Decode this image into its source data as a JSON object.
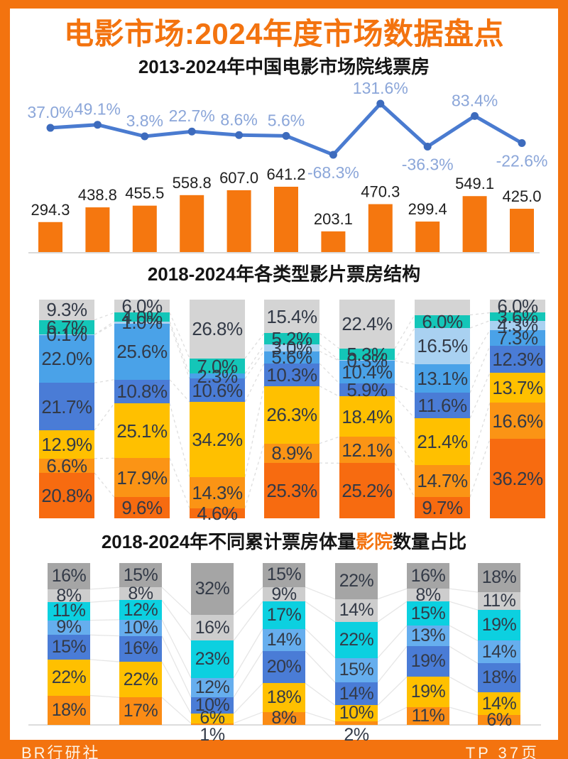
{
  "header": {
    "title": "电影市场:2024年度市场数据盘点",
    "title_color": "#f3730f"
  },
  "footer": {
    "left": "BR行研社",
    "right": "TP 37页"
  },
  "chart_data": [
    {
      "type": "bar",
      "title": "2013-2024年中国电影市场院线票房",
      "bar_values": [
        294.3,
        438.8,
        455.5,
        558.8,
        607.0,
        641.2,
        203.1,
        470.3,
        299.4,
        549.1,
        425.0
      ],
      "line_yoy_pct": [
        37.0,
        49.1,
        3.8,
        22.7,
        8.6,
        5.6,
        -68.3,
        131.6,
        -36.3,
        83.4,
        -22.6
      ],
      "legend": "bars: box office; line: YoY growth %",
      "bar_color": "#f5770f",
      "line_color": "#4a7bd0",
      "point_color": "#3d6bbd",
      "line_label_color": "#8ba6d9",
      "bar_label_color": "#1f1f1f",
      "axis_color": "#d9d9d9"
    },
    {
      "type": "stacked-bar",
      "title": "2018-2024年各类型影片票房结构",
      "label_color": "#333a47",
      "palette": {
        "gray": "#d4d4d4",
        "teal": "#14c6b8",
        "pale": "#a9d1f1",
        "light": "#4aa2e8",
        "med": "#4a7cd6",
        "gold": "#ffc000",
        "orange": "#fb9415",
        "deep": "#f76b10"
      },
      "columns": [
        {
          "segments": [
            [
              9.3,
              "gray",
              "9.3%"
            ],
            [
              6.7,
              "teal",
              "6.7%"
            ],
            [
              0.1,
              "pale",
              "0.1%"
            ],
            [
              22.0,
              "light",
              "22.0%"
            ],
            [
              21.7,
              "med",
              "21.7%"
            ],
            [
              12.9,
              "gold",
              "12.9%"
            ],
            [
              6.6,
              "orange",
              "6.6%"
            ],
            [
              20.8,
              "deep",
              "20.8%"
            ]
          ]
        },
        {
          "segments": [
            [
              6.0,
              "gray",
              "6.0%"
            ],
            [
              4.0,
              "teal",
              "4.0%"
            ],
            [
              1.0,
              "pale",
              "1.0%"
            ],
            [
              25.6,
              "light",
              "25.6%"
            ],
            [
              10.8,
              "med",
              "10.8%"
            ],
            [
              25.1,
              "gold",
              "25.1%"
            ],
            [
              17.9,
              "orange",
              "17.9%"
            ],
            [
              9.6,
              "deep",
              "9.6%"
            ]
          ]
        },
        {
          "segments": [
            [
              26.8,
              "gray",
              "26.8%"
            ],
            [
              7.0,
              "teal",
              "7.0%"
            ],
            [
              2.3,
              "light",
              "2.3%"
            ],
            [
              10.6,
              "med",
              "10.6%"
            ],
            [
              34.2,
              "gold",
              "34.2%"
            ],
            [
              14.3,
              "orange",
              "14.3%"
            ],
            [
              4.6,
              "deep",
              "4.6%"
            ]
          ]
        },
        {
          "segments": [
            [
              15.4,
              "gray",
              "15.4%"
            ],
            [
              5.2,
              "teal",
              "5.2%"
            ],
            [
              3.0,
              "pale",
              "3.0%"
            ],
            [
              5.6,
              "light",
              "5.6%"
            ],
            [
              10.3,
              "med",
              "10.3%"
            ],
            [
              26.3,
              "gold",
              "26.3%"
            ],
            [
              8.9,
              "orange",
              "8.9%"
            ],
            [
              25.3,
              "deep",
              "25.3%"
            ]
          ]
        },
        {
          "segments": [
            [
              22.4,
              "gray",
              "22.4%"
            ],
            [
              5.3,
              "teal",
              "5.3%"
            ],
            [
              0.3,
              "pale",
              "0.3%"
            ],
            [
              10.4,
              "light",
              "10.4%"
            ],
            [
              5.9,
              "med",
              "5.9%"
            ],
            [
              18.4,
              "gold",
              "18.4%"
            ],
            [
              12.1,
              "orange",
              "12.1%"
            ],
            [
              25.2,
              "deep",
              "25.2%"
            ]
          ]
        },
        {
          "segments": [
            [
              7.0,
              "gray",
              ""
            ],
            [
              6.0,
              "teal",
              "6.0%"
            ],
            [
              16.5,
              "pale",
              "16.5%"
            ],
            [
              13.1,
              "light",
              "13.1%"
            ],
            [
              11.6,
              "med",
              "11.6%"
            ],
            [
              21.4,
              "gold",
              "21.4%"
            ],
            [
              14.7,
              "orange",
              "14.7%"
            ],
            [
              9.7,
              "deep",
              "9.7%"
            ]
          ]
        },
        {
          "segments": [
            [
              6.0,
              "gray",
              "6.0%"
            ],
            [
              3.6,
              "teal",
              "3.6%"
            ],
            [
              4.3,
              "pale",
              "4.3%"
            ],
            [
              7.3,
              "light",
              "7.3%"
            ],
            [
              12.3,
              "med",
              "12.3%"
            ],
            [
              13.7,
              "gold",
              "13.7%"
            ],
            [
              16.6,
              "orange",
              "16.6%"
            ],
            [
              36.2,
              "deep",
              "36.2%"
            ]
          ]
        }
      ]
    },
    {
      "type": "stacked-bar",
      "title": "2018-2024年不同累计票房体量影院数量占比",
      "title_prefix": "2018-2024年不同累计票房体量",
      "title_highlight": "影院",
      "title_suffix": "数量占比",
      "highlight_color": "#f3730f",
      "label_color": "#333a47",
      "palette": {
        "dgray": "#a5a5a5",
        "lgray": "#cdcdcd",
        "cyan": "#0cd0e0",
        "light": "#66aeee",
        "med": "#4a7cd6",
        "gold": "#ffc000",
        "orange": "#fb8c15"
      },
      "columns": [
        {
          "segments": [
            [
              16,
              "dgray",
              "16%"
            ],
            [
              8,
              "lgray",
              "8%"
            ],
            [
              11,
              "cyan",
              "11%"
            ],
            [
              9,
              "light",
              "9%"
            ],
            [
              15,
              "med",
              "15%"
            ],
            [
              22,
              "gold",
              "22%"
            ],
            [
              18,
              "orange",
              "18%"
            ]
          ]
        },
        {
          "segments": [
            [
              15,
              "dgray",
              "15%"
            ],
            [
              8,
              "lgray",
              "8%"
            ],
            [
              12,
              "cyan",
              "12%"
            ],
            [
              10,
              "light",
              "10%"
            ],
            [
              16,
              "med",
              "16%"
            ],
            [
              22,
              "gold",
              "22%"
            ],
            [
              17,
              "orange",
              "17%"
            ]
          ]
        },
        {
          "segments": [
            [
              32,
              "dgray",
              "32%"
            ],
            [
              16,
              "lgray",
              "16%"
            ],
            [
              23,
              "cyan",
              "23%"
            ],
            [
              12,
              "light",
              "12%"
            ],
            [
              10,
              "med",
              "10%"
            ],
            [
              6,
              "gold",
              "6%"
            ],
            [
              1,
              "orange",
              "1%",
              "out"
            ]
          ]
        },
        {
          "segments": [
            [
              15,
              "dgray",
              "15%"
            ],
            [
              9,
              "lgray",
              "9%"
            ],
            [
              17,
              "cyan",
              "17%"
            ],
            [
              14,
              "light",
              "14%"
            ],
            [
              20,
              "med",
              "20%"
            ],
            [
              18,
              "gold",
              "18%"
            ],
            [
              8,
              "orange",
              "8%"
            ]
          ]
        },
        {
          "segments": [
            [
              22,
              "dgray",
              "22%"
            ],
            [
              14,
              "lgray",
              "14%"
            ],
            [
              22,
              "cyan",
              "22%"
            ],
            [
              15,
              "light",
              "15%"
            ],
            [
              14,
              "med",
              "14%"
            ],
            [
              10,
              "gold",
              "10%"
            ],
            [
              2,
              "orange",
              "2%",
              "out"
            ]
          ]
        },
        {
          "segments": [
            [
              16,
              "dgray",
              "16%"
            ],
            [
              8,
              "lgray",
              "8%"
            ],
            [
              15,
              "cyan",
              "15%"
            ],
            [
              13,
              "light",
              "13%"
            ],
            [
              19,
              "med",
              "19%"
            ],
            [
              19,
              "gold",
              "19%"
            ],
            [
              11,
              "orange",
              "11%"
            ]
          ]
        },
        {
          "segments": [
            [
              18,
              "dgray",
              "18%"
            ],
            [
              11,
              "lgray",
              "11%"
            ],
            [
              19,
              "cyan",
              "19%"
            ],
            [
              14,
              "light",
              "14%"
            ],
            [
              18,
              "med",
              "18%"
            ],
            [
              14,
              "gold",
              "14%"
            ],
            [
              6,
              "orange",
              "6%"
            ]
          ]
        }
      ]
    }
  ]
}
